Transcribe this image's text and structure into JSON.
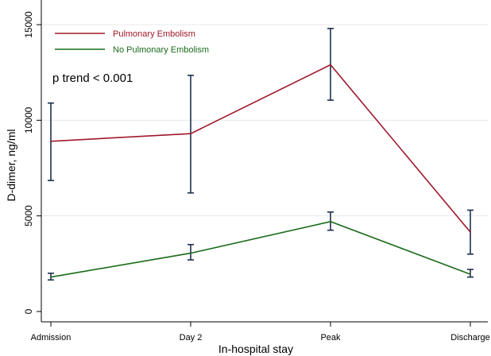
{
  "chart_data": {
    "type": "line",
    "categories": [
      "Admission",
      "Day 2",
      "Peak",
      "Discharge"
    ],
    "xlabel": "In-hospital stay",
    "ylabel": "D-dimer, ng/ml",
    "ylim": [
      0,
      15000
    ],
    "yticks": [
      0,
      5000,
      10000,
      15000
    ],
    "grid": true,
    "legend_position": "top-left",
    "annotation": "p trend < 0.001",
    "series": [
      {
        "name": "Pulmonary Embolism",
        "color": "#a0182a",
        "values": [
          8900,
          9300,
          12900,
          4150
        ],
        "error_low": [
          6850,
          6200,
          11050,
          3000
        ],
        "error_high": [
          10900,
          12350,
          14800,
          5300
        ]
      },
      {
        "name": "No Pulmonary Embolism",
        "color": "#1a6b1a",
        "values": [
          1800,
          3050,
          4700,
          1950
        ],
        "error_low": [
          1650,
          2700,
          4250,
          1800
        ],
        "error_high": [
          2000,
          3500,
          5200,
          2200
        ]
      }
    ],
    "errorbar_color": "#1f2f4f"
  }
}
